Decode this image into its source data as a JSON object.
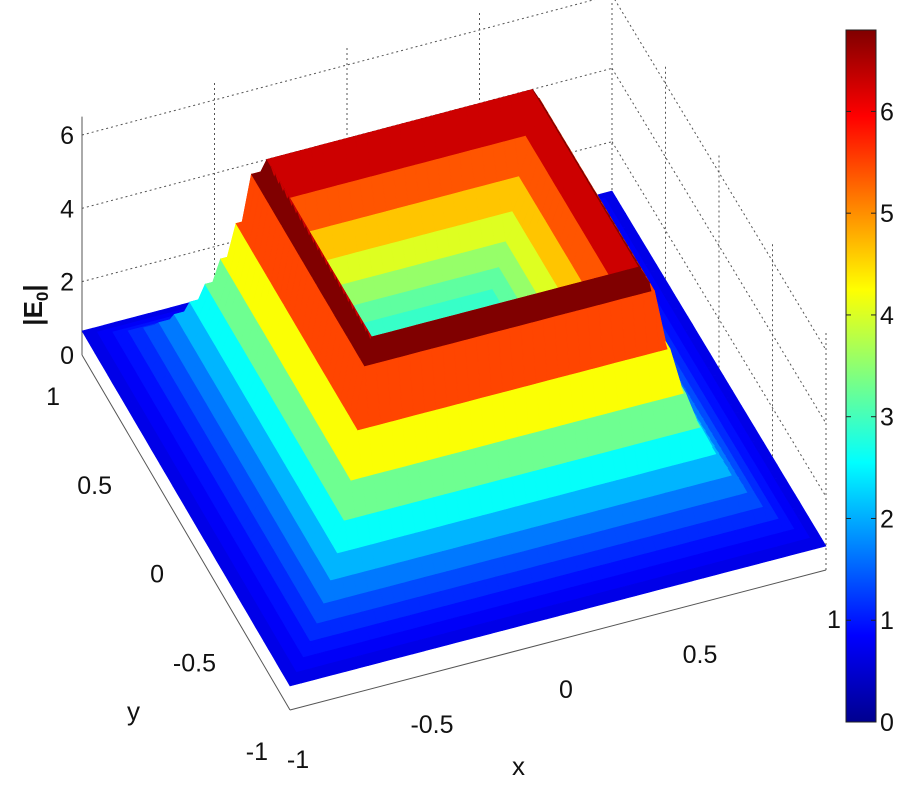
{
  "chart_data": {
    "type": "surface3d",
    "title": "",
    "xlabel": "x",
    "ylabel": "y",
    "zlabel": "|E",
    "zlabel_subscript": "0",
    "zlabel_suffix": "|",
    "xlim": [
      -1,
      1
    ],
    "ylim": [
      -1,
      1
    ],
    "zlim": [
      0,
      6.8
    ],
    "x_ticks": [
      "-1",
      "-0.5",
      "0",
      "0.5",
      "1"
    ],
    "y_ticks": [
      "-1",
      "-0.5",
      "0",
      "0.5",
      "1"
    ],
    "z_ticks": [
      "0",
      "2",
      "4",
      "6"
    ],
    "colorbar": {
      "range": [
        0,
        6.8
      ],
      "ticks": [
        "0",
        "1",
        "2",
        "3",
        "4",
        "5",
        "6"
      ],
      "colormap": "jet"
    },
    "grid": true,
    "surface_description_values": {
      "ring_half_width": 0.5,
      "peak_value": 6.8,
      "inner_value": 2.5,
      "edge_value": 0.3
    }
  }
}
